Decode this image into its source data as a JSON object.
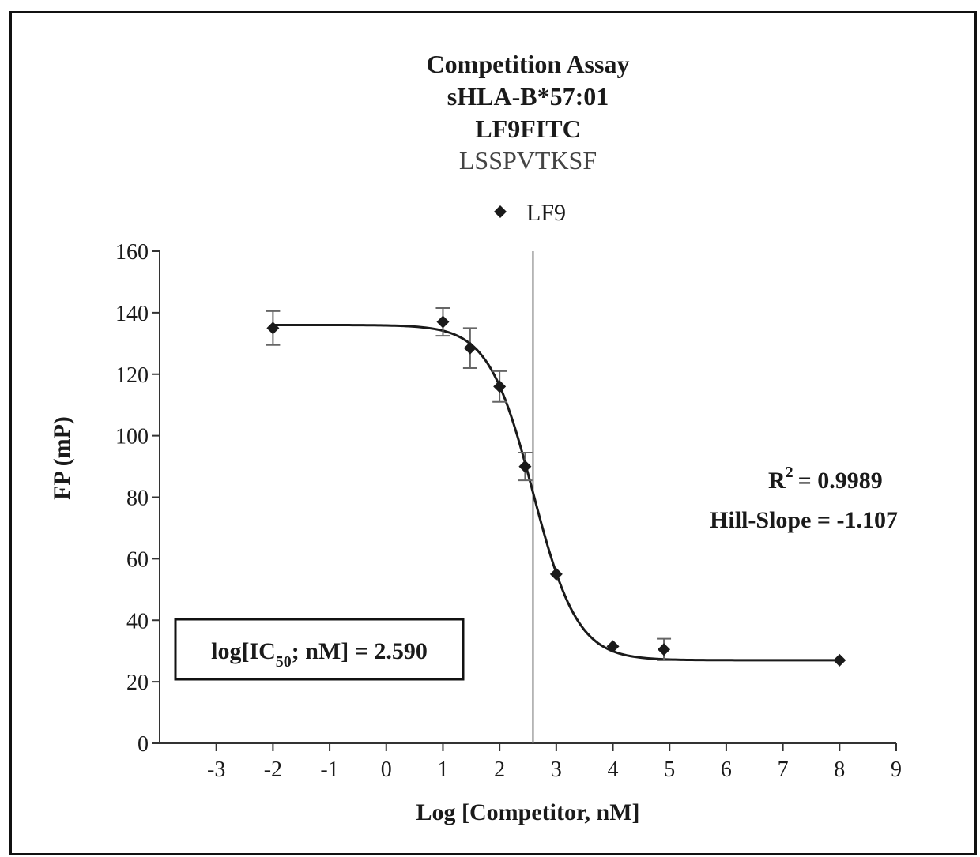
{
  "chart_data": {
    "type": "scatter",
    "title": "Competition Assay",
    "subtitle_lines": [
      "sHLA-B*57:01",
      "LF9FITC",
      "LSSPVTKSF"
    ],
    "xlabel": "Log [Competitor, nM]",
    "ylabel": "FP (mP)",
    "xlim": [
      -4,
      9
    ],
    "ylim": [
      0,
      160
    ],
    "xticks": [
      -3,
      -2,
      -1,
      0,
      1,
      2,
      3,
      4,
      5,
      6,
      7,
      8,
      9
    ],
    "yticks": [
      0,
      20,
      40,
      60,
      80,
      100,
      120,
      140,
      160
    ],
    "grid": false,
    "legend_position": "top-center",
    "series": [
      {
        "name": "LF9",
        "marker": "diamond",
        "color": "#1a1a1a",
        "points": [
          {
            "x": -2,
            "y": 135,
            "err": 5.5
          },
          {
            "x": 1,
            "y": 137,
            "err": 4.5
          },
          {
            "x": 1.48,
            "y": 128.5,
            "err": 6.5
          },
          {
            "x": 2,
            "y": 116,
            "err": 5
          },
          {
            "x": 2.45,
            "y": 90,
            "err": 4.5
          },
          {
            "x": 3,
            "y": 55,
            "err": 0
          },
          {
            "x": 4,
            "y": 31.5,
            "err": 0
          },
          {
            "x": 4.9,
            "y": 30.5,
            "err": 3.5
          },
          {
            "x": 8,
            "y": 27,
            "err": 0
          }
        ]
      }
    ],
    "fit": {
      "top": 136,
      "bottom": 27,
      "log_ic50": 2.59,
      "hill_slope": -1.107,
      "vertical_line_x": 2.59
    },
    "annotations": {
      "r2_label": "R",
      "r2_sup": "2",
      "r2_value": "=  0.9989",
      "hill_slope": "Hill-Slope = -1.107",
      "ic50_prefix": "log[IC",
      "ic50_sub": "50",
      "ic50_suffix": "; nM] =  2.590"
    }
  },
  "colors": {
    "line": "#1a1a1a",
    "axis": "#333333",
    "ic50_line": "#777777"
  }
}
